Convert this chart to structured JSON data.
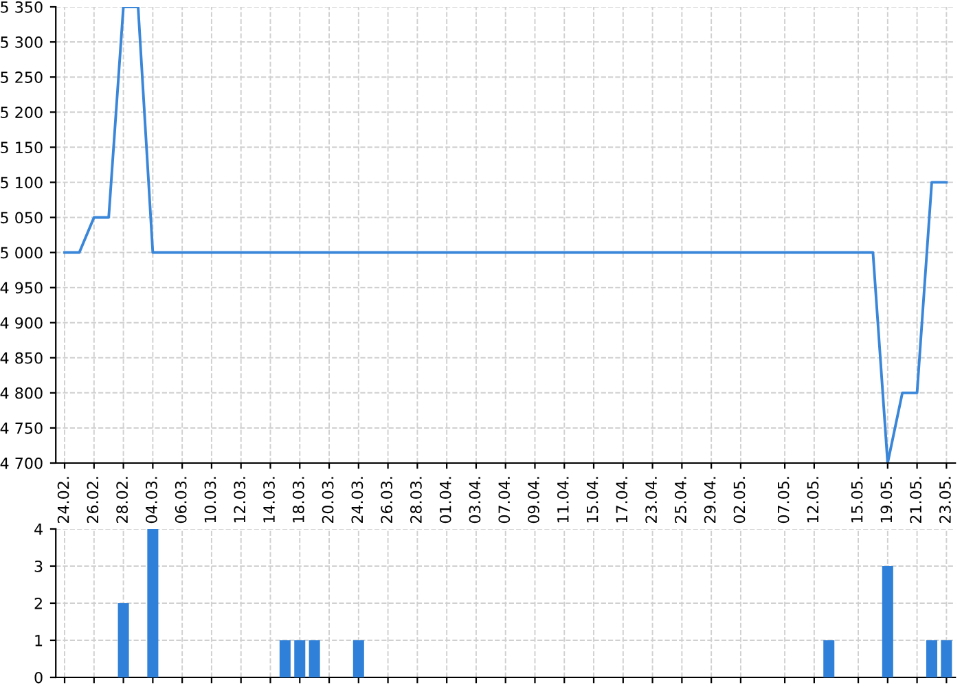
{
  "chart_data": [
    {
      "type": "line",
      "categories": [
        "24.02.",
        null,
        "26.02.",
        null,
        "28.02.",
        null,
        "04.03.",
        null,
        "06.03.",
        null,
        "10.03.",
        null,
        "12.03.",
        null,
        "14.03.",
        null,
        "18.03.",
        null,
        "20.03.",
        null,
        "24.03.",
        null,
        "26.03.",
        null,
        "28.03.",
        null,
        "01.04.",
        null,
        "03.04.",
        null,
        "07.04.",
        null,
        "09.04.",
        null,
        "11.04.",
        null,
        "15.04.",
        null,
        "17.04.",
        null,
        "23.04.",
        null,
        "25.04.",
        null,
        "29.04.",
        null,
        "02.05.",
        null,
        null,
        "07.05.",
        null,
        "12.05.",
        null,
        null,
        "15.05.",
        null,
        "19.05.",
        null,
        "21.05.",
        null,
        "23.05."
      ],
      "series": [
        {
          "color": "#3a86d9",
          "values": [
            5000,
            5000,
            5050,
            5050,
            5350,
            5350,
            5000,
            5000,
            5000,
            5000,
            5000,
            5000,
            5000,
            5000,
            5000,
            5000,
            5000,
            5000,
            5000,
            5000,
            5000,
            5000,
            5000,
            5000,
            5000,
            5000,
            5000,
            5000,
            5000,
            5000,
            5000,
            5000,
            5000,
            5000,
            5000,
            5000,
            5000,
            5000,
            5000,
            5000,
            5000,
            5000,
            5000,
            5000,
            5000,
            5000,
            5000,
            5000,
            5000,
            5000,
            5000,
            5000,
            5000,
            5000,
            5000,
            5000,
            4700,
            4800,
            4800,
            5100,
            5100
          ]
        }
      ],
      "ylim": [
        4700,
        5350
      ],
      "yticks": [
        {
          "value": 4700,
          "label": "4 700"
        },
        {
          "value": 4750,
          "label": "4 750"
        },
        {
          "value": 4800,
          "label": "4 800"
        },
        {
          "value": 4850,
          "label": "4 850"
        },
        {
          "value": 4900,
          "label": "4 900"
        },
        {
          "value": 4950,
          "label": "4 950"
        },
        {
          "value": 5000,
          "label": "5 000"
        },
        {
          "value": 5050,
          "label": "5 050"
        },
        {
          "value": 5100,
          "label": "5 100"
        },
        {
          "value": 5150,
          "label": "5 150"
        },
        {
          "value": 5200,
          "label": "5 200"
        },
        {
          "value": 5250,
          "label": "5 250"
        },
        {
          "value": 5300,
          "label": "5 300"
        },
        {
          "value": 5350,
          "label": "5 350"
        }
      ],
      "grid": true,
      "marker": "none",
      "line_style": "solid"
    },
    {
      "type": "bar",
      "categories": [
        "24.02.",
        null,
        "26.02.",
        null,
        "28.02.",
        null,
        "04.03.",
        null,
        "06.03.",
        null,
        "10.03.",
        null,
        "12.03.",
        null,
        "14.03.",
        null,
        "18.03.",
        null,
        "20.03.",
        null,
        "24.03.",
        null,
        "26.03.",
        null,
        "28.03.",
        null,
        "01.04.",
        null,
        "03.04.",
        null,
        "07.04.",
        null,
        "09.04.",
        null,
        "11.04.",
        null,
        "15.04.",
        null,
        "17.04.",
        null,
        "23.04.",
        null,
        "25.04.",
        null,
        "29.04.",
        null,
        "02.05.",
        null,
        null,
        "07.05.",
        null,
        "12.05.",
        null,
        null,
        "15.05.",
        null,
        "19.05.",
        null,
        "21.05.",
        null,
        "23.05."
      ],
      "series": [
        {
          "color": "#2f80d8",
          "values": [
            0,
            0,
            0,
            0,
            2,
            0,
            4,
            0,
            0,
            0,
            0,
            0,
            0,
            0,
            0,
            1,
            1,
            1,
            0,
            0,
            1,
            0,
            0,
            0,
            0,
            0,
            0,
            0,
            0,
            0,
            0,
            0,
            0,
            0,
            0,
            0,
            0,
            0,
            0,
            0,
            0,
            0,
            0,
            0,
            0,
            0,
            0,
            0,
            0,
            0,
            0,
            0,
            1,
            0,
            0,
            0,
            3,
            0,
            0,
            1,
            1
          ]
        }
      ],
      "ylim": [
        0,
        4
      ],
      "yticks": [
        0,
        1,
        2,
        3,
        4
      ],
      "grid": true,
      "tick_labels": "y"
    }
  ]
}
